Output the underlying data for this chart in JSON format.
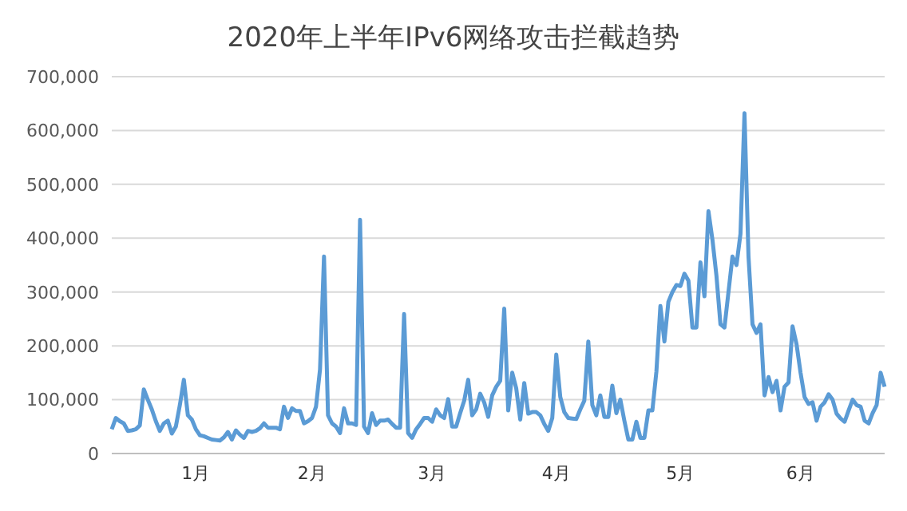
{
  "chart_data": {
    "type": "line",
    "title": "2020年上半年IPv6网络攻击拦截趋势",
    "categories": [
      null,
      null,
      null,
      null,
      null,
      null,
      null,
      null,
      null,
      null,
      null,
      null,
      null,
      null,
      null,
      null,
      null,
      null,
      null,
      null,
      null,
      "1月",
      null,
      null,
      null,
      null,
      null,
      null,
      null,
      null,
      null,
      null,
      null,
      null,
      null,
      null,
      null,
      null,
      null,
      null,
      null,
      null,
      null,
      null,
      null,
      null,
      null,
      null,
      null,
      null,
      "2月",
      null,
      null,
      null,
      null,
      null,
      null,
      null,
      null,
      null,
      null,
      null,
      null,
      null,
      null,
      null,
      null,
      null,
      null,
      null,
      null,
      null,
      null,
      null,
      null,
      null,
      null,
      null,
      null,
      null,
      "3月",
      null,
      null,
      null,
      null,
      null,
      null,
      null,
      null,
      null,
      null,
      null,
      null,
      null,
      null,
      null,
      null,
      null,
      null,
      null,
      null,
      null,
      null,
      null,
      null,
      null,
      null,
      null,
      null,
      null,
      null,
      "4月",
      null,
      null,
      null,
      null,
      null,
      null,
      null,
      null,
      null,
      null,
      null,
      null,
      null,
      null,
      null,
      null,
      null,
      null,
      null,
      null,
      null,
      null,
      null,
      null,
      null,
      null,
      null,
      null,
      null,
      null,
      "5月",
      null,
      null,
      null,
      null,
      null,
      null,
      null,
      null,
      null,
      null,
      null,
      null,
      null,
      null,
      null,
      null,
      null,
      null,
      null,
      null,
      null,
      null,
      null,
      null,
      null,
      null,
      null,
      null,
      null,
      "6月",
      null,
      null,
      null,
      null,
      null,
      null,
      null,
      null,
      null,
      null,
      null,
      null,
      null,
      null,
      null,
      null,
      null,
      null,
      null,
      null,
      null
    ],
    "series": [
      {
        "color": "#5b9bd5",
        "values": [
          45000,
          66000,
          60000,
          56000,
          42000,
          43000,
          45000,
          52000,
          119000,
          100000,
          82000,
          60000,
          42000,
          56000,
          61000,
          37000,
          50000,
          90000,
          137000,
          71000,
          63000,
          45000,
          34000,
          32000,
          29000,
          26000,
          25000,
          24000,
          30000,
          40000,
          26000,
          43000,
          35000,
          29000,
          42000,
          40000,
          42000,
          47000,
          56000,
          48000,
          48000,
          48000,
          45000,
          87000,
          66000,
          84000,
          79000,
          79000,
          56000,
          60000,
          66000,
          87000,
          156000,
          366000,
          71000,
          56000,
          50000,
          38000,
          84000,
          56000,
          56000,
          53000,
          434000,
          50000,
          38000,
          75000,
          53000,
          61000,
          61000,
          63000,
          55000,
          48000,
          48000,
          259000,
          38000,
          29000,
          45000,
          55000,
          66000,
          66000,
          59000,
          82000,
          71000,
          66000,
          101000,
          50000,
          50000,
          75000,
          98000,
          137000,
          71000,
          82000,
          111000,
          95000,
          68000,
          108000,
          124000,
          135000,
          269000,
          80000,
          150000,
          121000,
          63000,
          131000,
          74000,
          77000,
          77000,
          71000,
          55000,
          42000,
          66000,
          184000,
          105000,
          77000,
          66000,
          65000,
          64000,
          82000,
          98000,
          208000,
          90000,
          71000,
          108000,
          68000,
          68000,
          126000,
          75000,
          100000,
          61000,
          26000,
          26000,
          59000,
          29000,
          29000,
          80000,
          80000,
          152000,
          274000,
          208000,
          282000,
          300000,
          313000,
          311000,
          334000,
          321000,
          234000,
          234000,
          355000,
          292000,
          450000,
          397000,
          330000,
          240000,
          234000,
          300000,
          366000,
          350000,
          408000,
          632000,
          366000,
          240000,
          224000,
          240000,
          108000,
          142000,
          114000,
          135000,
          80000,
          124000,
          132000,
          236000,
          203000,
          150000,
          105000,
          92000,
          95000,
          61000,
          87000,
          95000,
          110000,
          100000,
          74000,
          65000,
          59000,
          80000,
          100000,
          90000,
          87000,
          61000,
          56000,
          75000,
          90000,
          150000,
          124000
        ]
      }
    ],
    "ylim": [
      0,
      700000
    ],
    "yticks": [
      {
        "value": 0,
        "label": "0"
      },
      {
        "value": 100000,
        "label": "100,000"
      },
      {
        "value": 200000,
        "label": "200,000"
      },
      {
        "value": 300000,
        "label": "300,000"
      },
      {
        "value": 400000,
        "label": "400,000"
      },
      {
        "value": 500000,
        "label": "500,000"
      },
      {
        "value": 600000,
        "label": "600,000"
      },
      {
        "value": 700000,
        "label": "700,000"
      }
    ],
    "grid": "y",
    "marker": "none",
    "line_style": "solid"
  }
}
